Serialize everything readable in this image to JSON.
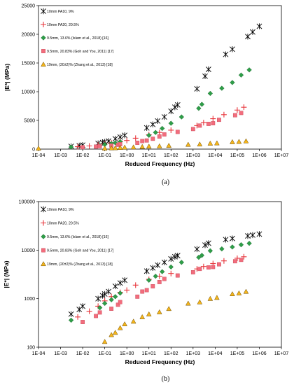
{
  "chart_data": [
    {
      "type": "scatter",
      "caption": "(a)",
      "xlabel": "Reduced Frequency (Hz)",
      "ylabel": "|E*| (MPa)",
      "xscale": "log",
      "yscale": "linear",
      "xlim": [
        0.0001,
        10000000
      ],
      "ylim": [
        0,
        25000
      ],
      "x_ticks": [
        "1E-04",
        "1E-03",
        "1E-02",
        "1E-01",
        "1E+00",
        "1E+01",
        "1E+02",
        "1E+03",
        "1E+04",
        "1E+05",
        "1E+06",
        "1E+07"
      ],
      "y_ticks": [
        "0",
        "5000",
        "10000",
        "15000",
        "20000",
        "25000"
      ],
      "legend_position": "top-left",
      "series": [
        {
          "name": "10mm PA10, 9%",
          "marker": "asterisk",
          "color": "#000000",
          "points": [
            [
              0.003,
              480
            ],
            [
              0.007,
              600
            ],
            [
              0.01,
              700
            ],
            [
              0.05,
              1000
            ],
            [
              0.08,
              1150
            ],
            [
              0.1,
              1250
            ],
            [
              0.15,
              1400
            ],
            [
              0.3,
              1800
            ],
            [
              0.5,
              2100
            ],
            [
              0.8,
              2400
            ],
            [
              8,
              3700
            ],
            [
              15,
              4300
            ],
            [
              25,
              4900
            ],
            [
              50,
              5600
            ],
            [
              100,
              6600
            ],
            [
              150,
              7300
            ],
            [
              200,
              7700
            ],
            [
              1500,
              10500
            ],
            [
              3500,
              12700
            ],
            [
              5000,
              13900
            ],
            [
              30000,
              16500
            ],
            [
              60000,
              17400
            ],
            [
              300000,
              19600
            ],
            [
              500000,
              20400
            ],
            [
              1000000,
              21400
            ]
          ]
        },
        {
          "name": "10mm PA20, 20.5%",
          "marker": "plus",
          "color": "#e8353b",
          "points": [
            [
              0.006,
              420
            ],
            [
              0.02,
              550
            ],
            [
              0.05,
              700
            ],
            [
              0.1,
              900
            ],
            [
              0.2,
              1100
            ],
            [
              0.5,
              1350
            ],
            [
              1,
              1500
            ],
            [
              2.5,
              1900
            ],
            [
              10,
              2500
            ],
            [
              30,
              2900
            ],
            [
              100,
              3300
            ],
            [
              1500,
              4100
            ],
            [
              3000,
              4600
            ],
            [
              8000,
              5300
            ],
            [
              25000,
              6000
            ],
            [
              100000,
              6800
            ],
            [
              200000,
              7300
            ]
          ]
        },
        {
          "name": "9.5mm, 13.6% (Islam et al., 2018) [16]",
          "marker": "diamond",
          "color": "#2e9e48",
          "points": [
            [
              0.003,
              360
            ],
            [
              0.06,
              650
            ],
            [
              0.1,
              800
            ],
            [
              0.2,
              950
            ],
            [
              0.3,
              1100
            ],
            [
              0.5,
              1300
            ],
            [
              10,
              2400
            ],
            [
              20,
              2900
            ],
            [
              40,
              3600
            ],
            [
              100,
              4500
            ],
            [
              300,
              5600
            ],
            [
              1800,
              7100
            ],
            [
              2500,
              7800
            ],
            [
              6000,
              9700
            ],
            [
              20000,
              10600
            ],
            [
              60000,
              11600
            ],
            [
              150000,
              12900
            ],
            [
              350000,
              13800
            ]
          ]
        },
        {
          "name": "9.5mm, 20.83% (Goh and You, 2011) [17]",
          "marker": "square",
          "color": "#f26d7d",
          "points": [
            [
              0.01,
              330
            ],
            [
              0.04,
              440
            ],
            [
              0.06,
              520
            ],
            [
              0.2,
              620
            ],
            [
              0.4,
              750
            ],
            [
              0.5,
              850
            ],
            [
              3,
              1100
            ],
            [
              5,
              1400
            ],
            [
              8,
              1500
            ],
            [
              15,
              1800
            ],
            [
              30,
              2200
            ],
            [
              50,
              2550
            ],
            [
              200,
              3000
            ],
            [
              1000,
              3500
            ],
            [
              2000,
              4100
            ],
            [
              5000,
              4400
            ],
            [
              8000,
              4500
            ],
            [
              15000,
              5100
            ],
            [
              80000,
              5900
            ],
            [
              150000,
              6300
            ]
          ]
        },
        {
          "name": "19mm, (20±2)% (Zhang et al., 2013) [18]",
          "marker": "triangle",
          "color": "#f5b61c",
          "points": [
            [
              0.0001,
              130
            ],
            [
              0.1,
              130
            ],
            [
              0.2,
              180
            ],
            [
              0.3,
              200
            ],
            [
              0.5,
              250
            ],
            [
              0.8,
              300
            ],
            [
              2,
              340
            ],
            [
              5,
              420
            ],
            [
              10,
              480
            ],
            [
              30,
              530
            ],
            [
              80,
              620
            ],
            [
              600,
              800
            ],
            [
              2000,
              850
            ],
            [
              6000,
              1000
            ],
            [
              12000,
              1050
            ],
            [
              60000,
              1250
            ],
            [
              120000,
              1300
            ],
            [
              250000,
              1400
            ]
          ]
        }
      ]
    },
    {
      "type": "scatter",
      "caption": "(b)",
      "xlabel": "Reduced Frequency (Hz)",
      "ylabel": "|E*| (MPa)",
      "xscale": "log",
      "yscale": "log",
      "xlim": [
        0.0001,
        10000000
      ],
      "ylim": [
        100,
        100000
      ],
      "x_ticks": [
        "1E-04",
        "1E-03",
        "1E-02",
        "1E-01",
        "1E+00",
        "1E+01",
        "1E+02",
        "1E+03",
        "1E+04",
        "1E+05",
        "1E+06",
        "1E+07"
      ],
      "y_ticks": [
        "100",
        "1000",
        "10000",
        "100000"
      ],
      "legend_position": "top-left",
      "series": [
        {
          "name": "10mm PA10, 9%",
          "marker": "asterisk",
          "color": "#000000",
          "points": [
            [
              0.003,
              480
            ],
            [
              0.007,
              600
            ],
            [
              0.01,
              700
            ],
            [
              0.05,
              1000
            ],
            [
              0.08,
              1150
            ],
            [
              0.1,
              1250
            ],
            [
              0.15,
              1400
            ],
            [
              0.3,
              1800
            ],
            [
              0.5,
              2100
            ],
            [
              0.8,
              2400
            ],
            [
              8,
              3700
            ],
            [
              15,
              4300
            ],
            [
              25,
              4900
            ],
            [
              50,
              5600
            ],
            [
              100,
              6600
            ],
            [
              150,
              7300
            ],
            [
              200,
              7700
            ],
            [
              1500,
              10500
            ],
            [
              3500,
              12700
            ],
            [
              5000,
              13900
            ],
            [
              30000,
              16500
            ],
            [
              60000,
              17400
            ],
            [
              300000,
              19600
            ],
            [
              500000,
              20400
            ],
            [
              1000000,
              21400
            ]
          ]
        },
        {
          "name": "10mm PA20, 20.5%",
          "marker": "plus",
          "color": "#e8353b",
          "points": [
            [
              0.006,
              420
            ],
            [
              0.02,
              550
            ],
            [
              0.05,
              700
            ],
            [
              0.1,
              900
            ],
            [
              0.2,
              1100
            ],
            [
              0.5,
              1350
            ],
            [
              1,
              1500
            ],
            [
              2.5,
              1900
            ],
            [
              10,
              2500
            ],
            [
              30,
              2900
            ],
            [
              100,
              3300
            ],
            [
              1500,
              4100
            ],
            [
              3000,
              4600
            ],
            [
              8000,
              5300
            ],
            [
              25000,
              6000
            ],
            [
              100000,
              6800
            ],
            [
              200000,
              7300
            ]
          ]
        },
        {
          "name": "9.5mm, 13.6% (Islam et al., 2018) [16]",
          "marker": "diamond",
          "color": "#2e9e48",
          "points": [
            [
              0.003,
              360
            ],
            [
              0.06,
              650
            ],
            [
              0.1,
              800
            ],
            [
              0.2,
              950
            ],
            [
              0.3,
              1100
            ],
            [
              0.5,
              1300
            ],
            [
              10,
              2400
            ],
            [
              20,
              2900
            ],
            [
              40,
              3600
            ],
            [
              100,
              4500
            ],
            [
              300,
              5600
            ],
            [
              1800,
              7100
            ],
            [
              2500,
              7800
            ],
            [
              6000,
              9700
            ],
            [
              20000,
              10600
            ],
            [
              60000,
              11600
            ],
            [
              150000,
              12900
            ],
            [
              350000,
              13800
            ]
          ]
        },
        {
          "name": "9.5mm, 20.83% (Goh and You, 2011) [17]",
          "marker": "square",
          "color": "#f26d7d",
          "points": [
            [
              0.01,
              330
            ],
            [
              0.04,
              440
            ],
            [
              0.06,
              520
            ],
            [
              0.2,
              620
            ],
            [
              0.4,
              750
            ],
            [
              0.5,
              850
            ],
            [
              3,
              1100
            ],
            [
              5,
              1400
            ],
            [
              8,
              1500
            ],
            [
              15,
              1800
            ],
            [
              30,
              2200
            ],
            [
              50,
              2550
            ],
            [
              200,
              3000
            ],
            [
              1000,
              3500
            ],
            [
              2000,
              4100
            ],
            [
              5000,
              4400
            ],
            [
              8000,
              4500
            ],
            [
              15000,
              5100
            ],
            [
              80000,
              5900
            ],
            [
              150000,
              6300
            ]
          ]
        },
        {
          "name": "19mm, (20±2)% (Zhang et al., 2013) [18]",
          "marker": "triangle",
          "color": "#f5b61c",
          "points": [
            [
              0.1,
              130
            ],
            [
              0.2,
              180
            ],
            [
              0.3,
              200
            ],
            [
              0.5,
              250
            ],
            [
              0.8,
              300
            ],
            [
              2,
              340
            ],
            [
              5,
              420
            ],
            [
              10,
              480
            ],
            [
              30,
              530
            ],
            [
              80,
              620
            ],
            [
              600,
              800
            ],
            [
              2000,
              850
            ],
            [
              6000,
              1000
            ],
            [
              12000,
              1050
            ],
            [
              60000,
              1250
            ],
            [
              120000,
              1300
            ],
            [
              250000,
              1400
            ]
          ]
        }
      ]
    }
  ]
}
